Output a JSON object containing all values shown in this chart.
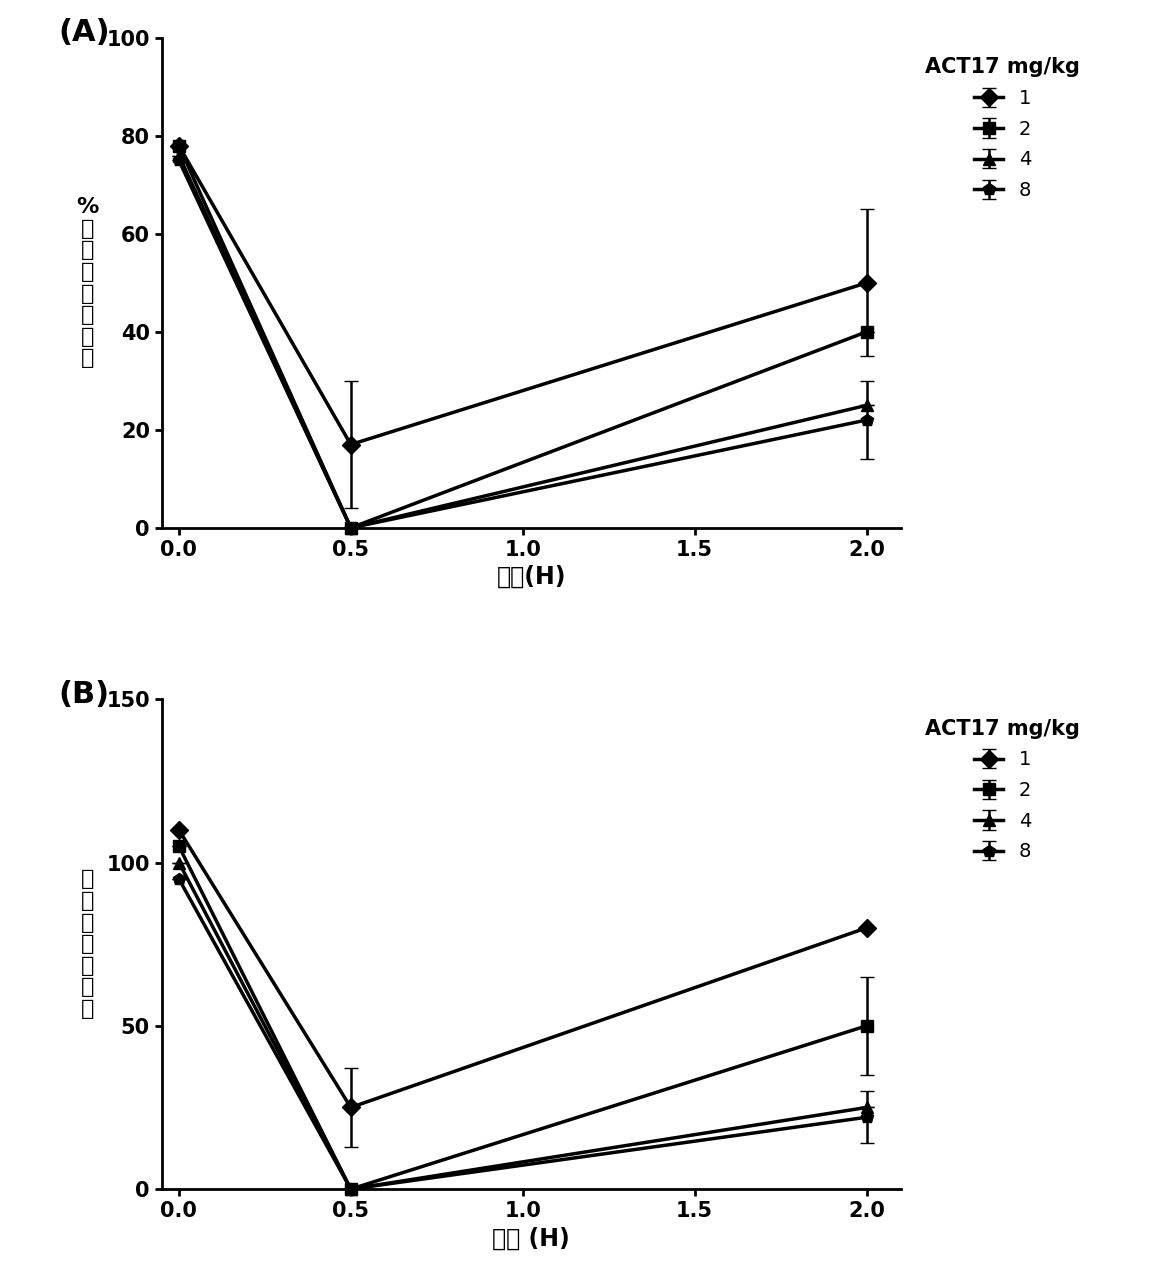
{
  "panel_A": {
    "title": "(A)",
    "ylabel_chars": [
      "%",
      "强",
      "度",
      "聚",
      "集",
      "板",
      "小",
      "血"
    ],
    "xlabel": "时间(H)",
    "legend_title": "ACT17 mg/kg",
    "x": [
      0.0,
      0.5,
      2.0
    ],
    "series": [
      {
        "label": "1",
        "y": [
          78,
          17,
          50
        ],
        "yerr": [
          0,
          13,
          15
        ]
      },
      {
        "label": "2",
        "y": [
          78,
          0,
          40
        ],
        "yerr": [
          0,
          0,
          0
        ]
      },
      {
        "label": "4",
        "y": [
          76,
          0,
          25
        ],
        "yerr": [
          0,
          0,
          0
        ]
      },
      {
        "label": "8",
        "y": [
          75,
          0,
          22
        ],
        "yerr": [
          0,
          0,
          8
        ]
      }
    ],
    "ylim": [
      0,
      100
    ],
    "yticks": [
      0,
      20,
      40,
      60,
      80,
      100
    ],
    "xticks": [
      0.0,
      0.5,
      1.0,
      1.5,
      2.0
    ]
  },
  "panel_B": {
    "title": "(B)",
    "ylabel_chars": [
      "度",
      "速",
      "聚",
      "集",
      "板",
      "小",
      "血"
    ],
    "xlabel": "时间 (H)",
    "legend_title": "ACT17 mg/kg",
    "x": [
      0.0,
      0.5,
      2.0
    ],
    "series": [
      {
        "label": "1",
        "y": [
          110,
          25,
          80
        ],
        "yerr": [
          0,
          12,
          0
        ]
      },
      {
        "label": "2",
        "y": [
          105,
          0,
          50
        ],
        "yerr": [
          0,
          0,
          15
        ]
      },
      {
        "label": "4",
        "y": [
          100,
          0,
          25
        ],
        "yerr": [
          0,
          0,
          0
        ]
      },
      {
        "label": "8",
        "y": [
          95,
          0,
          22
        ],
        "yerr": [
          0,
          0,
          8
        ]
      }
    ],
    "ylim": [
      0,
      150
    ],
    "yticks": [
      0,
      50,
      100,
      150
    ],
    "xticks": [
      0.0,
      0.5,
      1.0,
      1.5,
      2.0
    ]
  },
  "line_color": "#000000",
  "marker_styles": [
    "D",
    "s",
    "^",
    "p"
  ],
  "marker_size": 9,
  "linewidth": 2.5,
  "capsize": 5,
  "elinewidth": 1.8
}
